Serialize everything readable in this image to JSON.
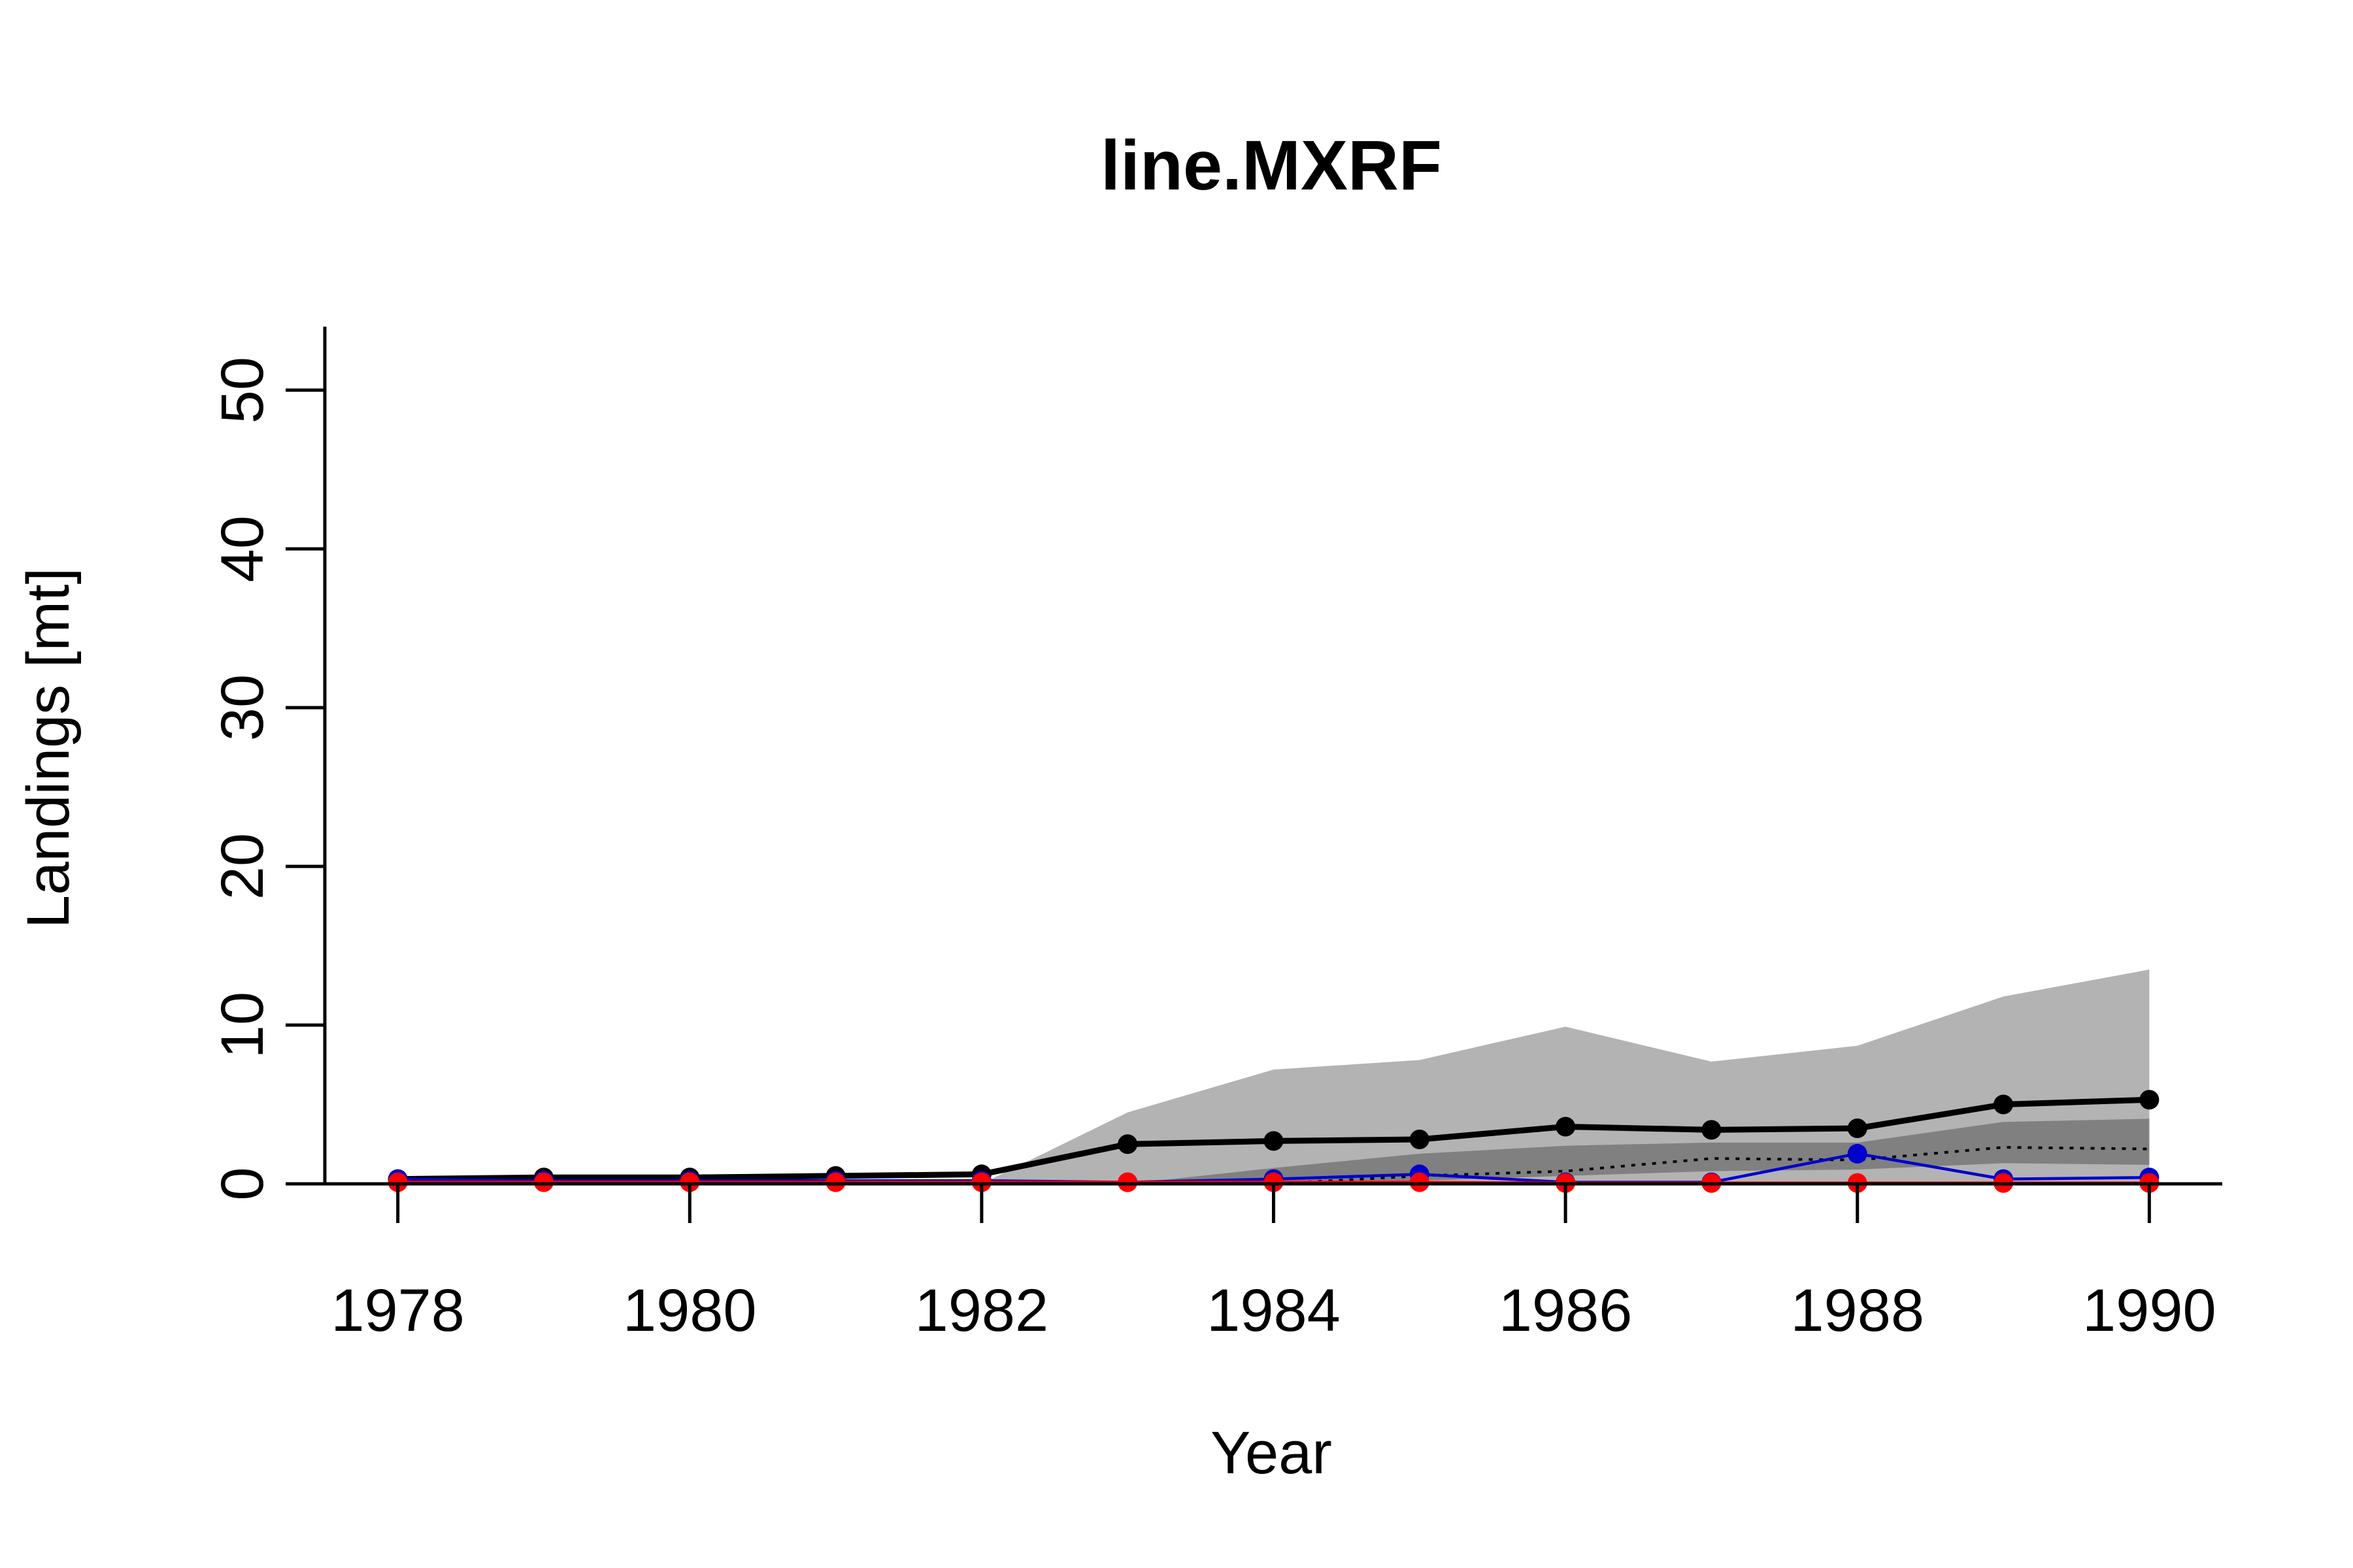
{
  "chart_data": {
    "type": "line",
    "title": "line.MXRF",
    "xlabel": "Year",
    "ylabel": "Landings [mt]",
    "xlim": [
      1977.5,
      1990.5
    ],
    "ylim": [
      0,
      54
    ],
    "x_ticks": [
      1978,
      1980,
      1982,
      1984,
      1986,
      1988,
      1990
    ],
    "x_tick_labels": [
      "1978",
      "1980",
      "1982",
      "1984",
      "1986",
      "1988",
      "1990"
    ],
    "y_ticks": [
      0,
      10,
      20,
      30,
      40,
      50
    ],
    "y_tick_labels": [
      "0",
      "10",
      "20",
      "30",
      "40",
      "50"
    ],
    "grid": false,
    "legend": "none",
    "x": [
      1978,
      1979,
      1980,
      1981,
      1982,
      1983,
      1984,
      1985,
      1986,
      1987,
      1988,
      1989,
      1990
    ],
    "bands": [
      {
        "color": "#b3b3b3",
        "lower": [
          0,
          0,
          0,
          0,
          0,
          0,
          0,
          0,
          0,
          0,
          0,
          0,
          0
        ],
        "upper": [
          0,
          0,
          0,
          0,
          0,
          4.5,
          7.2,
          7.8,
          9.9,
          7.7,
          8.7,
          11.8,
          13.5
        ]
      },
      {
        "color": "#808080",
        "lower": [
          0,
          0,
          0,
          0,
          0,
          0,
          0,
          0.2,
          0.5,
          0.8,
          0.9,
          1.3,
          1.2
        ],
        "upper": [
          0,
          0,
          0,
          0,
          0,
          0,
          1.0,
          1.9,
          2.4,
          2.6,
          2.6,
          3.9,
          4.1
        ]
      }
    ],
    "series": [
      {
        "values": [
          0.3,
          0.4,
          0.4,
          0.5,
          0.6,
          2.5,
          2.7,
          2.8,
          3.6,
          3.4,
          3.5,
          5.0,
          5.3
        ],
        "color": "#000000",
        "style": "solid",
        "markers": true
      },
      {
        "values": [
          0,
          0,
          0,
          0,
          0,
          0,
          0,
          0.5,
          0.8,
          1.6,
          1.5,
          2.3,
          2.2
        ],
        "color": "#000000",
        "style": "dotted",
        "markers": false
      },
      {
        "values": [
          0.3,
          0.2,
          0.2,
          0.2,
          0.2,
          0.1,
          0.3,
          0.6,
          0.1,
          0.1,
          1.9,
          0.3,
          0.4
        ],
        "color": "#0000cc",
        "style": "solid",
        "markers": true
      },
      {
        "values": [
          0.1,
          0.1,
          0.1,
          0.1,
          0.1,
          0.1,
          0.1,
          0.1,
          0.05,
          0.05,
          0.05,
          0.05,
          0.05
        ],
        "color": "#ff0000",
        "style": "solid",
        "markers": true
      }
    ]
  }
}
